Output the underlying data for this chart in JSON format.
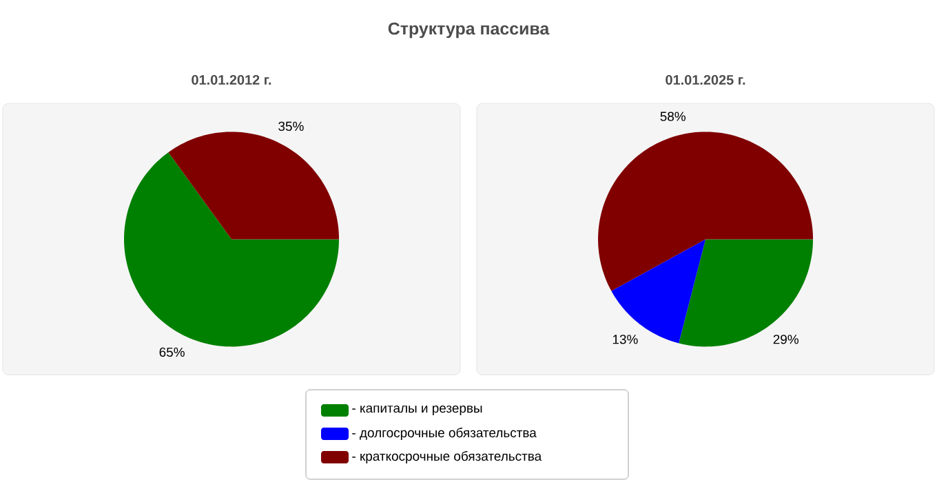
{
  "chart_data": [
    {
      "type": "pie",
      "title": "Структура пассива",
      "subtitle": "01.01.2012 г.",
      "categories": [
        null,
        null
      ],
      "values": [
        65,
        35
      ],
      "colors": [
        "#008000",
        "#800000"
      ],
      "value_labels": [
        "65%",
        "35%"
      ]
    },
    {
      "type": "pie",
      "subtitle": "01.01.2025 г.",
      "categories": [
        "- капиталы и резервы",
        "- долгосрочные обязательства",
        "- краткосрочные обязательства"
      ],
      "values": [
        29,
        13,
        58
      ],
      "colors": [
        "#008000",
        "#0000ff",
        "#800000"
      ],
      "value_labels": [
        "29%",
        "13%",
        "58%"
      ],
      "legend": "bottom"
    }
  ]
}
